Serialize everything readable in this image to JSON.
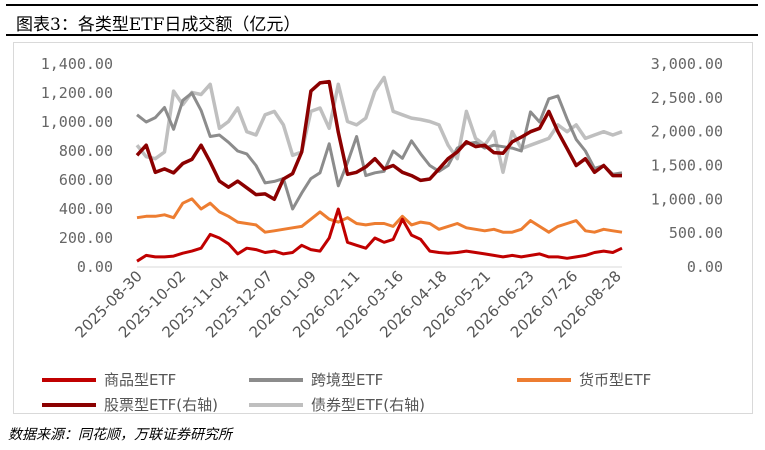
{
  "title": "图表3：各类型ETF日成交额（亿元）",
  "source": "数据来源：同花顺，万联证券研究所",
  "chart_data": {
    "type": "line",
    "left_axis": {
      "min": 0,
      "max": 1400,
      "ticks": [
        "0.00",
        "200.00",
        "400.00",
        "600.00",
        "800.00",
        "1,000.00",
        "1,200.00",
        "1,400.00"
      ]
    },
    "right_axis": {
      "min": 0,
      "max": 3000,
      "ticks": [
        "0.00",
        "500.00",
        "1,000.00",
        "1,500.00",
        "2,000.00",
        "2,500.00",
        "3,000.00"
      ]
    },
    "x_tick_labels": [
      "2025-08-30",
      "2025-10-02",
      "2025-11-04",
      "2025-12-07",
      "2026-01-09",
      "2026-02-11",
      "2026-03-16",
      "2026-04-18",
      "2026-05-21",
      "2026-06-23",
      "2026-07-26",
      "2026-08-28"
    ],
    "series": [
      {
        "name": "商品型ETF",
        "axis": "left",
        "color": "#c00000",
        "width": 3,
        "values": [
          40,
          80,
          70,
          70,
          75,
          95,
          110,
          130,
          225,
          200,
          160,
          90,
          130,
          120,
          100,
          110,
          90,
          100,
          150,
          120,
          110,
          200,
          400,
          170,
          150,
          130,
          200,
          170,
          190,
          330,
          220,
          190,
          110,
          100,
          95,
          100,
          110,
          100,
          90,
          80,
          70,
          80,
          70,
          80,
          90,
          70,
          70,
          60,
          70,
          80,
          100,
          110,
          100,
          130
        ]
      },
      {
        "name": "跨境型ETF",
        "axis": "left",
        "color": "#8c8c8c",
        "width": 3,
        "values": [
          1050,
          1000,
          1030,
          1100,
          950,
          1150,
          1200,
          1080,
          900,
          910,
          860,
          800,
          780,
          700,
          580,
          590,
          610,
          400,
          510,
          610,
          650,
          850,
          560,
          720,
          900,
          630,
          650,
          660,
          800,
          750,
          870,
          780,
          700,
          660,
          700,
          820,
          850,
          860,
          820,
          840,
          830,
          820,
          800,
          1070,
          1000,
          1160,
          1180,
          1020,
          880,
          800,
          680,
          700,
          640,
          650
        ]
      },
      {
        "name": "货币型ETF",
        "axis": "left",
        "color": "#ed7d31",
        "width": 3,
        "values": [
          340,
          350,
          350,
          360,
          340,
          440,
          470,
          400,
          440,
          380,
          350,
          310,
          300,
          290,
          240,
          250,
          260,
          270,
          280,
          330,
          380,
          330,
          310,
          340,
          300,
          290,
          300,
          300,
          280,
          350,
          290,
          310,
          300,
          260,
          280,
          300,
          270,
          260,
          250,
          260,
          240,
          240,
          260,
          320,
          280,
          240,
          280,
          300,
          320,
          250,
          240,
          260,
          250,
          240
        ]
      },
      {
        "name": "股票型ETF(右轴)",
        "axis": "right",
        "color": "#8b0000",
        "width": 3.5,
        "values": [
          1650,
          1800,
          1400,
          1450,
          1390,
          1530,
          1590,
          1800,
          1550,
          1270,
          1180,
          1270,
          1170,
          1070,
          1080,
          1000,
          1300,
          1380,
          1700,
          2600,
          2720,
          2740,
          1990,
          1370,
          1400,
          1480,
          1600,
          1450,
          1500,
          1400,
          1350,
          1280,
          1300,
          1450,
          1600,
          1700,
          1850,
          1780,
          1800,
          1690,
          1680,
          1850,
          1920,
          2000,
          2050,
          2300,
          2000,
          1750,
          1500,
          1600,
          1400,
          1500,
          1350,
          1350
        ]
      },
      {
        "name": "债券型ETF(右轴)",
        "axis": "right",
        "color": "#bfbfbf",
        "width": 3.5,
        "values": [
          1800,
          1630,
          1600,
          1700,
          2600,
          2400,
          2580,
          2550,
          2700,
          2050,
          2150,
          2350,
          2000,
          1950,
          2250,
          2300,
          2100,
          1650,
          1700,
          2300,
          2350,
          2050,
          2700,
          2150,
          2100,
          2200,
          2600,
          2800,
          2300,
          2250,
          2200,
          2180,
          2150,
          2100,
          1800,
          1600,
          2300,
          1900,
          1800,
          2000,
          1400,
          2000,
          1750,
          1800,
          1850,
          1900,
          2100,
          2000,
          2100,
          1900,
          1950,
          2000,
          1950,
          2000
        ]
      }
    ],
    "legend_position": "bottom",
    "grid": false
  }
}
